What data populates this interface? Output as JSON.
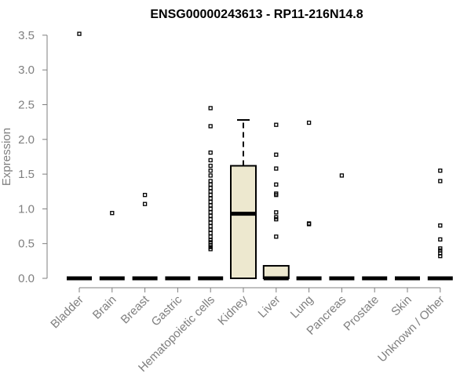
{
  "chart_data": {
    "type": "box",
    "title": "ENSG00000243613 - RP11-216N14.8",
    "ylabel": "Expression",
    "xlabel": "",
    "ylim": [
      0,
      3.55
    ],
    "yticks": [
      0.0,
      0.5,
      1.0,
      1.5,
      2.0,
      2.5,
      3.0,
      3.5
    ],
    "ytick_labels": [
      "0.0",
      "0.5",
      "1.0",
      "1.5",
      "2.0",
      "2.5",
      "3.0",
      "3.5"
    ],
    "categories": [
      "Bladder",
      "Brain",
      "Breast",
      "Gastric",
      "Hematopoietic cells",
      "Kidney",
      "Liver",
      "Lung",
      "Pancreas",
      "Prostate",
      "Skin",
      "Unknown / Other"
    ],
    "colors": {
      "box_fill": "#ede8cf",
      "box_stroke": "#000000",
      "axis": "#7f7f7f",
      "text": "#7f7f7f",
      "title": "#000000"
    },
    "boxes": [
      {
        "q1": 0,
        "median": 0,
        "q3": 0,
        "whisker_low": 0,
        "whisker_high": 0,
        "outliers": [
          3.52
        ]
      },
      {
        "q1": 0,
        "median": 0,
        "q3": 0,
        "whisker_low": 0,
        "whisker_high": 0,
        "outliers": [
          0.94
        ]
      },
      {
        "q1": 0,
        "median": 0,
        "q3": 0,
        "whisker_low": 0,
        "whisker_high": 0,
        "outliers": [
          1.07,
          1.2
        ]
      },
      {
        "q1": 0,
        "median": 0,
        "q3": 0,
        "whisker_low": 0,
        "whisker_high": 0,
        "outliers": []
      },
      {
        "q1": 0,
        "median": 0,
        "q3": 0,
        "whisker_low": 0,
        "whisker_high": 0,
        "outliers": [
          0.42,
          0.45,
          0.48,
          0.52,
          0.55,
          0.6,
          0.65,
          0.7,
          0.75,
          0.8,
          0.85,
          0.9,
          0.95,
          1.0,
          1.05,
          1.1,
          1.15,
          1.2,
          1.25,
          1.3,
          1.35,
          1.4,
          1.48,
          1.55,
          1.62,
          1.7,
          1.81,
          2.19,
          2.45
        ]
      },
      {
        "q1": 0,
        "median": 0.93,
        "q3": 1.62,
        "whisker_low": 0,
        "whisker_high": 2.28,
        "outliers": []
      },
      {
        "q1": 0,
        "median": 0,
        "q3": 0.18,
        "whisker_low": 0,
        "whisker_high": 0.18,
        "outliers": [
          0.6,
          0.85,
          0.88,
          0.95,
          1.2,
          1.22,
          1.35,
          1.58,
          1.78,
          2.21
        ]
      },
      {
        "q1": 0,
        "median": 0,
        "q3": 0,
        "whisker_low": 0,
        "whisker_high": 0,
        "outliers": [
          0.78,
          0.79,
          2.24
        ]
      },
      {
        "q1": 0,
        "median": 0,
        "q3": 0,
        "whisker_low": 0,
        "whisker_high": 0,
        "outliers": [
          1.48
        ]
      },
      {
        "q1": 0,
        "median": 0,
        "q3": 0,
        "whisker_low": 0,
        "whisker_high": 0,
        "outliers": []
      },
      {
        "q1": 0,
        "median": 0,
        "q3": 0,
        "whisker_low": 0,
        "whisker_high": 0,
        "outliers": []
      },
      {
        "q1": 0,
        "median": 0,
        "q3": 0,
        "whisker_low": 0,
        "whisker_high": 0,
        "outliers": [
          0.32,
          0.36,
          0.4,
          0.43,
          0.56,
          0.76,
          1.4,
          1.55
        ]
      }
    ]
  }
}
